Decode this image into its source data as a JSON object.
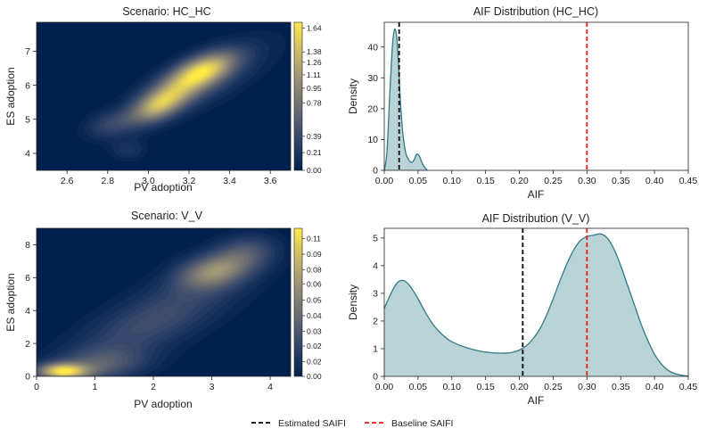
{
  "chart_data": [
    {
      "type": "heatmap",
      "title": "Scenario: HC_HC",
      "xlabel": "PV adoption",
      "ylabel": "ES adoption",
      "xlim": [
        2.45,
        3.7
      ],
      "ylim": [
        3.5,
        7.85
      ],
      "xticks": [
        "2.6",
        "2.8",
        "3.0",
        "3.2",
        "3.4",
        "3.6"
      ],
      "xtick_values": [
        2.6,
        2.8,
        3.0,
        3.2,
        3.4,
        3.6
      ],
      "yticks": [
        "4",
        "5",
        "6",
        "7"
      ],
      "ytick_values": [
        4,
        5,
        6,
        7
      ],
      "colorbar_ticks": [
        "1.64",
        "1.38",
        "1.26",
        "1.11",
        "0.95",
        "0.78",
        "0.39",
        "0.21",
        "0.00"
      ],
      "colorbar_tick_fractions": [
        0.96,
        0.8,
        0.73,
        0.645,
        0.555,
        0.455,
        0.23,
        0.12,
        0.0
      ],
      "colormap": [
        "#00204d",
        "#31446b",
        "#666970",
        "#958f78",
        "#cbba69",
        "#ffea46"
      ],
      "density_blobs": [
        {
          "x": 3.27,
          "y": 6.45,
          "sx": 0.11,
          "sy": 0.38,
          "rho": 0.55,
          "w": 1.0
        },
        {
          "x": 3.05,
          "y": 5.4,
          "sx": 0.09,
          "sy": 0.35,
          "rho": 0.5,
          "w": 0.82
        },
        {
          "x": 3.15,
          "y": 5.9,
          "sx": 0.14,
          "sy": 0.5,
          "rho": 0.65,
          "w": 0.55
        },
        {
          "x": 2.82,
          "y": 4.85,
          "sx": 0.09,
          "sy": 0.3,
          "rho": 0.3,
          "w": 0.3
        },
        {
          "x": 2.9,
          "y": 4.1,
          "sx": 0.06,
          "sy": 0.22,
          "rho": 0.0,
          "w": 0.18
        },
        {
          "x": 3.3,
          "y": 6.2,
          "sx": 0.22,
          "sy": 0.8,
          "rho": 0.75,
          "w": 0.22
        }
      ]
    },
    {
      "type": "area",
      "title": "AIF Distribution (HC_HC)",
      "xlabel": "AIF",
      "ylabel": "Density",
      "xlim": [
        0.0,
        0.45
      ],
      "ylim": [
        0,
        48
      ],
      "xticks": [
        "0.00",
        "0.05",
        "0.10",
        "0.15",
        "0.20",
        "0.25",
        "0.30",
        "0.35",
        "0.40",
        "0.45"
      ],
      "xtick_values": [
        0,
        0.05,
        0.1,
        0.15,
        0.2,
        0.25,
        0.3,
        0.35,
        0.4,
        0.45
      ],
      "yticks": [
        "0",
        "10",
        "20",
        "30",
        "40"
      ],
      "ytick_values": [
        0,
        10,
        20,
        30,
        40
      ],
      "x": [
        0.0,
        0.004,
        0.008,
        0.012,
        0.015,
        0.018,
        0.021,
        0.024,
        0.028,
        0.032,
        0.036,
        0.04,
        0.044,
        0.048,
        0.052,
        0.056,
        0.06,
        0.064
      ],
      "y": [
        0,
        6,
        24,
        40,
        45.5,
        44,
        35,
        22,
        11,
        5.5,
        3.5,
        2.6,
        3.3,
        5.2,
        4.6,
        2.4,
        0.9,
        0
      ],
      "fill_color": "#b9d3d6",
      "line_color": "#2e7b85",
      "vlines": [
        {
          "x": 0.022,
          "color": "#000000",
          "label": "Estimated SAIFI"
        },
        {
          "x": 0.3,
          "color": "#e41a1c",
          "label": "Baseline SAIFI"
        }
      ]
    },
    {
      "type": "heatmap",
      "title": "Scenario: V_V",
      "xlabel": "PV adoption",
      "ylabel": "ES adoption",
      "xlim": [
        0,
        4.35
      ],
      "ylim": [
        0,
        9.0
      ],
      "xticks": [
        "0",
        "1",
        "2",
        "3",
        "4"
      ],
      "xtick_values": [
        0,
        1,
        2,
        3,
        4
      ],
      "yticks": [
        "0",
        "2",
        "4",
        "6",
        "8"
      ],
      "ytick_values": [
        0,
        2,
        4,
        6,
        8
      ],
      "colorbar_ticks": [
        "0.11",
        "0.09",
        "0.08",
        "0.06",
        "0.05",
        "0.04",
        "0.03",
        "0.02",
        "0.02",
        "0.00"
      ],
      "colorbar_tick_fractions": [
        0.93,
        0.825,
        0.72,
        0.625,
        0.515,
        0.41,
        0.305,
        0.205,
        0.1,
        0.0
      ],
      "colormap": [
        "#00204d",
        "#31446b",
        "#666970",
        "#958f78",
        "#cbba69",
        "#ffea46"
      ],
      "density_blobs": [
        {
          "x": 0.45,
          "y": 0.3,
          "sx": 0.3,
          "sy": 0.35,
          "rho": 0.0,
          "w": 1.0
        },
        {
          "x": 1.1,
          "y": 0.7,
          "sx": 0.55,
          "sy": 0.7,
          "rho": 0.2,
          "w": 0.35
        },
        {
          "x": 3.05,
          "y": 6.4,
          "sx": 0.42,
          "sy": 0.75,
          "rho": 0.3,
          "w": 0.62
        },
        {
          "x": 2.4,
          "y": 4.3,
          "sx": 0.9,
          "sy": 1.9,
          "rho": 0.7,
          "w": 0.22
        },
        {
          "x": 3.6,
          "y": 7.6,
          "sx": 0.35,
          "sy": 0.7,
          "rho": 0.1,
          "w": 0.28
        },
        {
          "x": 1.6,
          "y": 2.6,
          "sx": 0.8,
          "sy": 1.4,
          "rho": 0.6,
          "w": 0.14
        }
      ]
    },
    {
      "type": "area",
      "title": "AIF Distribution (V_V)",
      "xlabel": "AIF",
      "ylabel": "Density",
      "xlim": [
        0.0,
        0.45
      ],
      "ylim": [
        0,
        5.35
      ],
      "xticks": [
        "0.00",
        "0.05",
        "0.10",
        "0.15",
        "0.20",
        "0.25",
        "0.30",
        "0.35",
        "0.40",
        "0.45"
      ],
      "xtick_values": [
        0,
        0.05,
        0.1,
        0.15,
        0.2,
        0.25,
        0.3,
        0.35,
        0.4,
        0.45
      ],
      "yticks": [
        "0",
        "1",
        "2",
        "3",
        "4",
        "5"
      ],
      "ytick_values": [
        0,
        1,
        2,
        3,
        4,
        5
      ],
      "x": [
        0.0,
        0.01,
        0.02,
        0.03,
        0.04,
        0.05,
        0.06,
        0.07,
        0.08,
        0.09,
        0.1,
        0.12,
        0.14,
        0.16,
        0.18,
        0.19,
        0.2,
        0.21,
        0.22,
        0.23,
        0.24,
        0.25,
        0.26,
        0.27,
        0.28,
        0.29,
        0.3,
        0.31,
        0.32,
        0.33,
        0.34,
        0.35,
        0.36,
        0.37,
        0.38,
        0.39,
        0.4,
        0.41,
        0.42,
        0.43,
        0.44,
        0.45
      ],
      "y": [
        2.45,
        3.0,
        3.4,
        3.45,
        3.2,
        2.8,
        2.35,
        1.95,
        1.65,
        1.42,
        1.25,
        1.05,
        0.92,
        0.85,
        0.84,
        0.87,
        0.95,
        1.1,
        1.35,
        1.7,
        2.2,
        2.8,
        3.45,
        4.05,
        4.55,
        4.9,
        5.05,
        5.1,
        5.15,
        5.0,
        4.6,
        4.0,
        3.3,
        2.6,
        1.9,
        1.3,
        0.8,
        0.45,
        0.22,
        0.1,
        0.04,
        0.01
      ],
      "fill_color": "#b9d3d6",
      "line_color": "#2e7b85",
      "vlines": [
        {
          "x": 0.205,
          "color": "#000000",
          "label": "Estimated SAIFI"
        },
        {
          "x": 0.3,
          "color": "#e41a1c",
          "label": "Baseline SAIFI"
        }
      ]
    }
  ],
  "legend": {
    "placement": "bottom-center",
    "entries": [
      {
        "label": "Estimated SAIFI",
        "color": "#000000"
      },
      {
        "label": "Baseline SAIFI",
        "color": "#e41a1c"
      }
    ]
  }
}
